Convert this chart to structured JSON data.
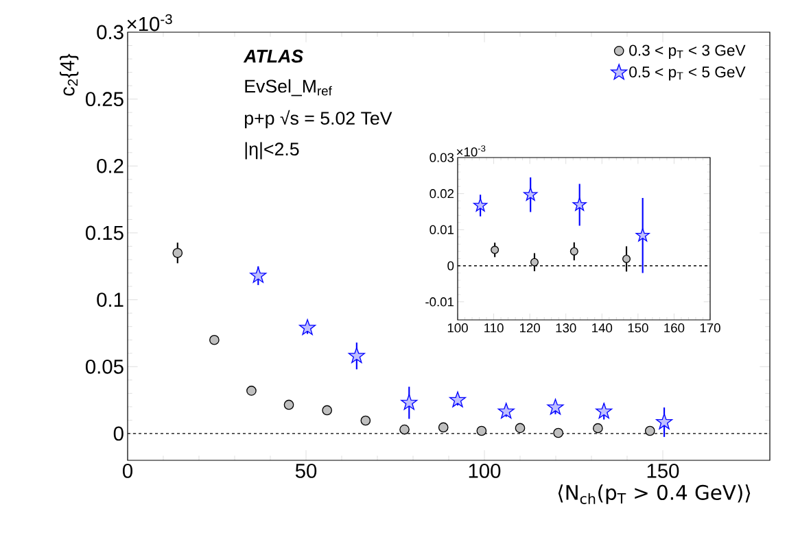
{
  "chart_data": [
    {
      "type": "scatter",
      "xlabel": "⟨N$_{ch}$(p$_{T}$ > 0.4 GeV)⟩",
      "ylabel": "c$_{2}${4}",
      "xlim": [
        0,
        180
      ],
      "ylim": [
        -0.02,
        0.3
      ],
      "xticks": [
        0,
        50,
        100,
        150
      ],
      "yticks": [
        0,
        0.05,
        0.1,
        0.15,
        0.2,
        0.25,
        0.3
      ],
      "legend": "top right",
      "ref_lines": [
        {
          "axis": "y",
          "value": 0,
          "line_style": "dashed"
        }
      ],
      "annotations": [
        "ATLAS",
        "EvSel_M$_{ref}$",
        "p+p   √s = 5.02 TeV",
        "|η|<2.5",
        "×10$^{-3}$"
      ],
      "series": [
        {
          "name": "0.3 < p$_{T}$ < 3 GeV",
          "color": "#000000",
          "marker": "circle",
          "x": [
            14,
            24.3,
            34.7,
            45.2,
            55.9,
            66.7,
            77.6,
            88.5,
            99.2,
            110,
            120.7,
            131.8,
            146.4
          ],
          "values": [
            0.135,
            0.07,
            0.032,
            0.0215,
            0.0174,
            0.0097,
            0.003,
            0.0046,
            0.002,
            0.0041,
            0.0005,
            0.004,
            0.002
          ],
          "errors": [
            0.0077,
            0.002,
            0.002,
            0.002,
            0.002,
            0.002,
            0.003,
            0.0025,
            0.002,
            0.002,
            0.0025,
            0.0025,
            0.003
          ]
        },
        {
          "name": "0.5 < p$_{T}$ < 5 GeV",
          "color": "#0000ff",
          "marker": "star",
          "x": [
            36.6,
            50.4,
            64.2,
            78.9,
            92.5,
            106.1,
            119.9,
            133.5,
            150.4
          ],
          "values": [
            0.118,
            0.079,
            0.058,
            0.023,
            0.025,
            0.0165,
            0.0195,
            0.0165,
            0.0085
          ],
          "errors": [
            0.007,
            0.0045,
            0.01,
            0.012,
            0.004,
            0.004,
            0.005,
            0.006,
            0.011
          ]
        }
      ]
    },
    {
      "type": "scatter",
      "xlim": [
        100,
        170
      ],
      "ylim": [
        -0.015,
        0.03
      ],
      "xticks": [
        100,
        110,
        120,
        130,
        140,
        150,
        160,
        170
      ],
      "yticks": [
        -0.01,
        0,
        0.01,
        0.02,
        0.03
      ],
      "ref_lines": [
        {
          "axis": "y",
          "value": 0,
          "line_style": "dashed"
        }
      ],
      "annotations": [
        "×10$^{-3}$"
      ],
      "series": [
        {
          "color": "#000000",
          "marker": "circle",
          "x": [
            110.3,
            121.3,
            132.3,
            146.8
          ],
          "values": [
            0.0044,
            0.001,
            0.004,
            0.0019
          ],
          "errors": [
            0.002,
            0.0025,
            0.0025,
            0.0035
          ]
        },
        {
          "color": "#0000ff",
          "marker": "star",
          "x": [
            106.3,
            120.2,
            133.8,
            151.3
          ],
          "values": [
            0.0167,
            0.0197,
            0.0169,
            0.0084
          ],
          "errors": [
            0.003,
            0.0048,
            0.0058,
            0.0104
          ]
        }
      ]
    }
  ]
}
